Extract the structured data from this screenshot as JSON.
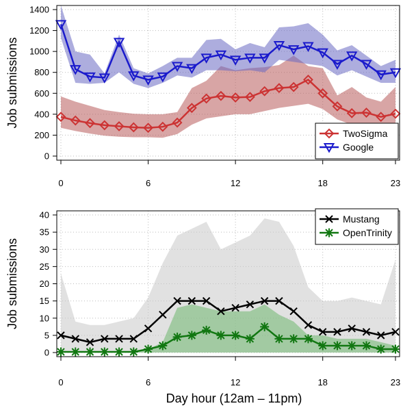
{
  "xlabel": "Day hour (12am – 11pm)",
  "chart_data": [
    {
      "type": "line",
      "ylabel": "Job submissions",
      "x": [
        0,
        1,
        2,
        3,
        4,
        5,
        6,
        7,
        8,
        9,
        10,
        11,
        12,
        13,
        14,
        15,
        16,
        17,
        18,
        19,
        20,
        21,
        22,
        23
      ],
      "xticks": [
        0,
        6,
        12,
        18,
        23
      ],
      "yticks": [
        0,
        200,
        400,
        600,
        800,
        1000,
        1200,
        1400
      ],
      "ylim": [
        0,
        1400
      ],
      "grid": true,
      "legend": "bottom-right",
      "series": [
        {
          "name": "TwoSigma",
          "color": "#cc3333",
          "band_color": "#b85b5b",
          "marker": "diamond",
          "values": [
            375,
            340,
            315,
            295,
            285,
            275,
            270,
            280,
            320,
            460,
            550,
            575,
            560,
            565,
            620,
            650,
            660,
            730,
            600,
            475,
            410,
            415,
            375,
            405
          ],
          "band_upper": [
            570,
            520,
            480,
            440,
            420,
            405,
            400,
            400,
            420,
            650,
            720,
            860,
            820,
            840,
            850,
            870,
            960,
            860,
            840,
            580,
            660,
            560,
            520,
            660
          ],
          "band_lower": [
            270,
            240,
            215,
            195,
            185,
            180,
            180,
            175,
            210,
            300,
            360,
            380,
            400,
            400,
            430,
            460,
            480,
            500,
            450,
            350,
            300,
            290,
            260,
            280
          ]
        },
        {
          "name": "Google",
          "color": "#1a1acc",
          "band_color": "#6a6ac2",
          "marker": "triangle-down",
          "values": [
            1260,
            830,
            760,
            750,
            1090,
            770,
            730,
            760,
            860,
            840,
            940,
            970,
            920,
            940,
            940,
            1060,
            1020,
            1050,
            990,
            880,
            960,
            880,
            780,
            800
          ],
          "band_upper": [
            1440,
            1000,
            970,
            790,
            1160,
            840,
            790,
            860,
            940,
            940,
            1110,
            1120,
            1020,
            1080,
            1040,
            1230,
            1240,
            1270,
            1160,
            1010,
            1060,
            960,
            860,
            920
          ],
          "band_lower": [
            1130,
            700,
            690,
            700,
            800,
            690,
            650,
            700,
            770,
            750,
            820,
            820,
            810,
            820,
            800,
            920,
            900,
            880,
            860,
            770,
            820,
            760,
            700,
            700
          ]
        }
      ]
    },
    {
      "type": "line",
      "ylabel": "Job submissions",
      "x": [
        0,
        1,
        2,
        3,
        4,
        5,
        6,
        7,
        8,
        9,
        10,
        11,
        12,
        13,
        14,
        15,
        16,
        17,
        18,
        19,
        20,
        21,
        22,
        23
      ],
      "xticks": [
        0,
        6,
        12,
        18,
        23
      ],
      "yticks": [
        0,
        5,
        10,
        15,
        20,
        25,
        30,
        35,
        40
      ],
      "ylim": [
        0,
        40
      ],
      "grid": true,
      "legend": "top-right",
      "series": [
        {
          "name": "Mustang",
          "color": "#000000",
          "band_color": "#c8c8c8",
          "marker": "x",
          "values": [
            5,
            4,
            3,
            4,
            4,
            4,
            7,
            11,
            15,
            15,
            15,
            12,
            13,
            14,
            15,
            15,
            12,
            8,
            6,
            6,
            7,
            6,
            5,
            6
          ],
          "band_upper": [
            23,
            9,
            8,
            8,
            9,
            10,
            16,
            26,
            34,
            36,
            38,
            30,
            32,
            34,
            39,
            38,
            31,
            19,
            15,
            15,
            16,
            15,
            14,
            27
          ],
          "band_lower": [
            0,
            0,
            0,
            0,
            0,
            0,
            0,
            0,
            0,
            0,
            0,
            0,
            0,
            0,
            0,
            0,
            0,
            0,
            0,
            0,
            0,
            0,
            0,
            0
          ]
        },
        {
          "name": "OpenTrinity",
          "color": "#117711",
          "band_color": "#6fb86f",
          "marker": "asterisk",
          "values": [
            0.2,
            0.2,
            0.2,
            0.2,
            0.2,
            0.2,
            1,
            2,
            4.5,
            5,
            6.5,
            5,
            5,
            4,
            7.5,
            4,
            4,
            4,
            2,
            2,
            2,
            2,
            1,
            1
          ],
          "band_upper": [
            0,
            0,
            0,
            0,
            0,
            0,
            1,
            3,
            13,
            14,
            13,
            12,
            12,
            12,
            14,
            11,
            9,
            5,
            5,
            4,
            4,
            4,
            3,
            2
          ],
          "band_lower": [
            0,
            0,
            0,
            0,
            0,
            0,
            0,
            0,
            0,
            0,
            0,
            0,
            0,
            0,
            0,
            0,
            0,
            0,
            0,
            0,
            0,
            0,
            0,
            0
          ]
        }
      ]
    }
  ]
}
